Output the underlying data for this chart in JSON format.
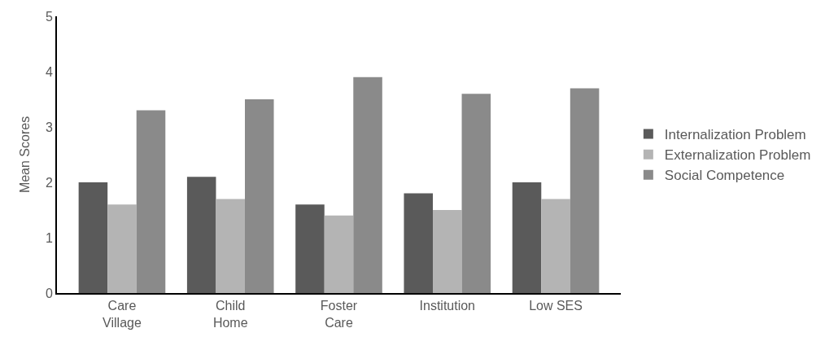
{
  "chart_data": {
    "type": "bar",
    "ylabel": "Mean Scores",
    "categories": [
      "Care\nVillage",
      "Child\nHome",
      "Foster\nCare",
      "Institution",
      "Low SES"
    ],
    "series": [
      {
        "name": "Internalization Problem",
        "color": "#5a5a5a",
        "values": [
          2.0,
          2.1,
          1.6,
          1.8,
          2.0
        ]
      },
      {
        "name": "Externalization Problem",
        "color": "#b4b4b4",
        "values": [
          1.6,
          1.7,
          1.4,
          1.5,
          1.7
        ]
      },
      {
        "name": "Social Competence",
        "color": "#8a8a8a",
        "values": [
          3.3,
          3.5,
          3.9,
          3.6,
          3.7
        ]
      }
    ],
    "ylim": [
      0,
      5
    ],
    "yticks": [
      0,
      1,
      2,
      3,
      4,
      5
    ],
    "legend": "right"
  }
}
